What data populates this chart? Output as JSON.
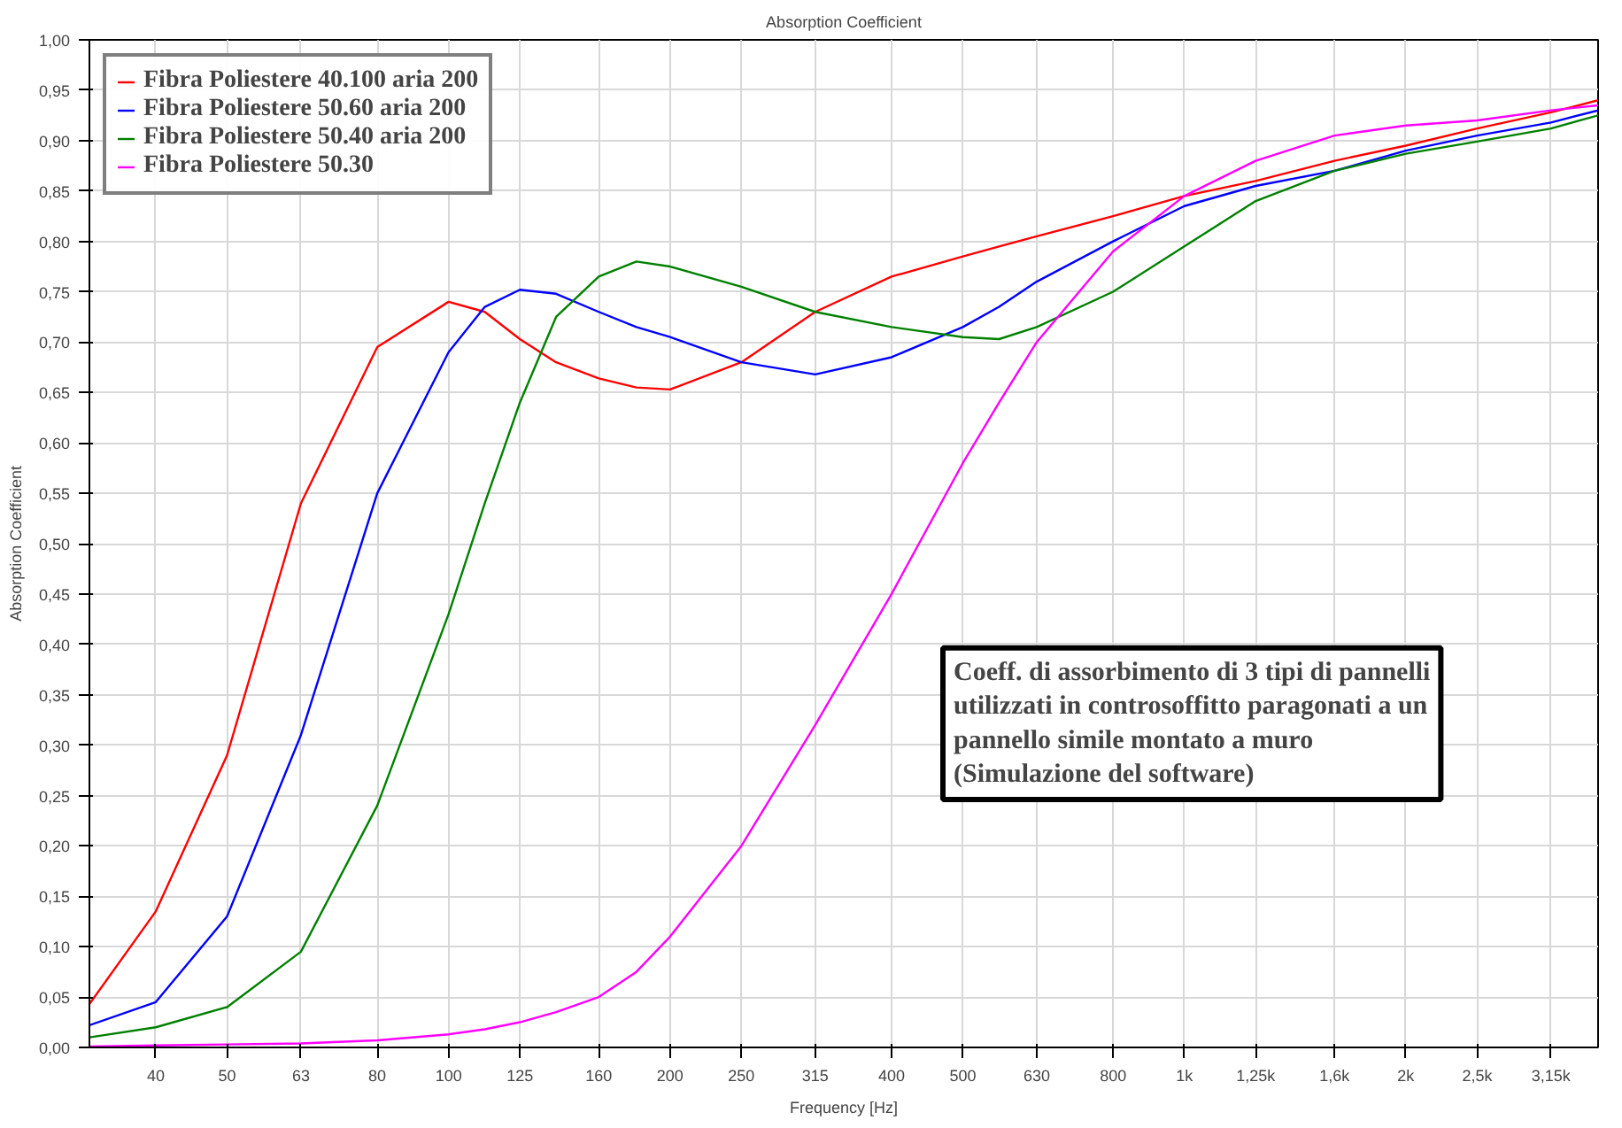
{
  "chart_data": {
    "type": "line",
    "title": "Absorption Coefficient",
    "xlabel": "Frequency [Hz]",
    "ylabel": "Absorption Coefficient",
    "log": "x",
    "grid": true,
    "legend": "top left",
    "marker": "none",
    "line_style": "solid",
    "x": [
      32.5,
      40,
      50,
      63,
      80,
      100,
      112,
      125,
      140,
      160,
      180,
      200,
      250,
      315,
      400,
      500,
      560,
      630,
      800,
      1000,
      1250,
      1600,
      2000,
      2500,
      3150,
      3650
    ],
    "series": [
      {
        "name": "Fibra Poliestere 40.100 aria 200",
        "color": "#ff0000",
        "values": [
          0.043,
          0.135,
          0.29,
          0.54,
          0.695,
          0.74,
          0.73,
          0.703,
          0.68,
          0.664,
          0.655,
          0.653,
          0.68,
          0.73,
          0.765,
          0.785,
          0.795,
          0.805,
          0.825,
          0.845,
          0.86,
          0.88,
          0.895,
          0.912,
          0.928,
          0.94
        ]
      },
      {
        "name": "Fibra Poliestere 50.60 aria 200",
        "color": "#0000ff",
        "values": [
          0.022,
          0.045,
          0.13,
          0.31,
          0.55,
          0.69,
          0.735,
          0.752,
          0.748,
          0.73,
          0.715,
          0.705,
          0.68,
          0.668,
          0.685,
          0.715,
          0.735,
          0.76,
          0.8,
          0.835,
          0.855,
          0.87,
          0.89,
          0.905,
          0.918,
          0.93
        ]
      },
      {
        "name": "Fibra Poliestere 50.40 aria 200",
        "color": "#008000",
        "values": [
          0.01,
          0.02,
          0.04,
          0.095,
          0.24,
          0.43,
          0.54,
          0.64,
          0.725,
          0.765,
          0.78,
          0.775,
          0.755,
          0.73,
          0.715,
          0.705,
          0.703,
          0.715,
          0.75,
          0.795,
          0.84,
          0.87,
          0.887,
          0.899,
          0.912,
          0.925
        ]
      },
      {
        "name": "Fibra Poliestere 50.30",
        "color": "#ff00ff",
        "values": [
          0.001,
          0.002,
          0.003,
          0.004,
          0.007,
          0.013,
          0.018,
          0.025,
          0.035,
          0.05,
          0.075,
          0.11,
          0.2,
          0.32,
          0.45,
          0.58,
          0.64,
          0.7,
          0.79,
          0.845,
          0.88,
          0.905,
          0.915,
          0.92,
          0.93,
          0.935
        ]
      }
    ],
    "xlim": [
      32.5,
      3650
    ],
    "ylim": [
      0,
      1
    ],
    "xticks": [
      40,
      50,
      63,
      80,
      100,
      125,
      160,
      200,
      250,
      315,
      400,
      500,
      630,
      800,
      {
        "value": 1000,
        "label": "1k"
      },
      {
        "value": 1250,
        "label": "1,25k"
      },
      {
        "value": 1600,
        "label": "1,6k"
      },
      {
        "value": 2000,
        "label": "2k"
      },
      {
        "value": 2500,
        "label": "2,5k"
      },
      {
        "value": 3150,
        "label": "3,15k"
      }
    ],
    "yticks": [
      {
        "value": 0,
        "label": "0,00"
      },
      {
        "value": 0.05,
        "label": "0,05"
      },
      {
        "value": 0.1,
        "label": "0,10"
      },
      {
        "value": 0.15,
        "label": "0,15"
      },
      {
        "value": 0.2,
        "label": "0,20"
      },
      {
        "value": 0.25,
        "label": "0,25"
      },
      {
        "value": 0.3,
        "label": "0,30"
      },
      {
        "value": 0.35,
        "label": "0,35"
      },
      {
        "value": 0.4,
        "label": "0,40"
      },
      {
        "value": 0.45,
        "label": "0,45"
      },
      {
        "value": 0.5,
        "label": "0,50"
      },
      {
        "value": 0.55,
        "label": "0,55"
      },
      {
        "value": 0.6,
        "label": "0,60"
      },
      {
        "value": 0.65,
        "label": "0,65"
      },
      {
        "value": 0.7,
        "label": "0,70"
      },
      {
        "value": 0.75,
        "label": "0,75"
      },
      {
        "value": 0.8,
        "label": "0,80"
      },
      {
        "value": 0.85,
        "label": "0,85"
      },
      {
        "value": 0.9,
        "label": "0,90"
      },
      {
        "value": 0.95,
        "label": "0,95"
      },
      {
        "value": 1,
        "label": "1,00"
      }
    ],
    "annotations": [
      "Coeff. di assorbimento di 3 tipi di pannelli\nutilizzati in controsoffitto paragonati a un\npannello simile montato a muro\n(Simulazione del software)"
    ]
  }
}
